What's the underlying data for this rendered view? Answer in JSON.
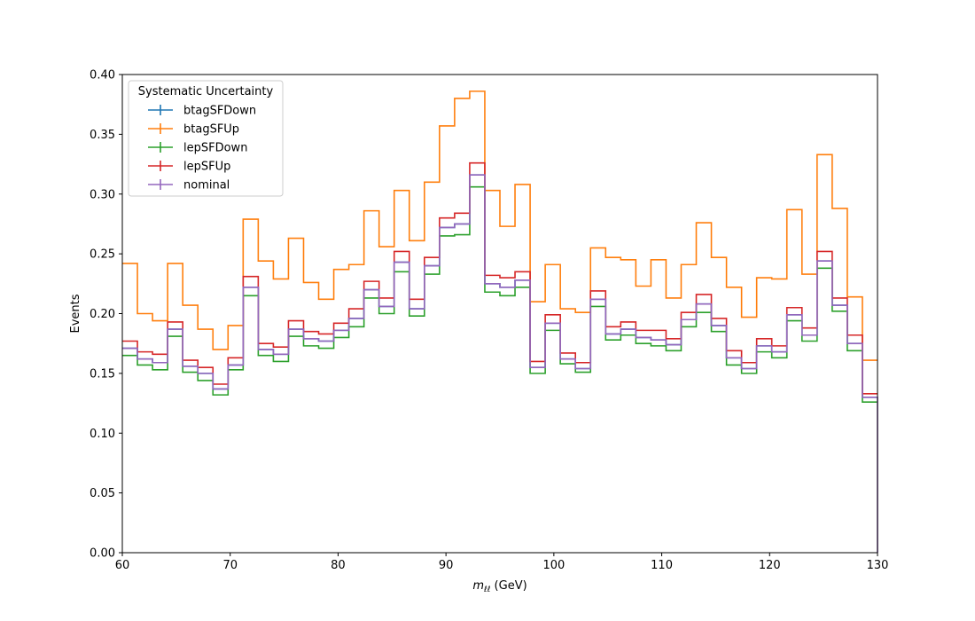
{
  "chart_data": {
    "type": "line",
    "drawstyle": "steps-post",
    "title": "",
    "xlabel_main": "m",
    "xlabel_sub": "ℓℓ",
    "xlabel_unit": " (GeV)",
    "ylabel": "Events",
    "xlim": [
      60,
      130
    ],
    "ylim": [
      0,
      0.4
    ],
    "xticks": [
      60,
      70,
      80,
      90,
      100,
      110,
      120,
      130
    ],
    "yticks": [
      "0.00",
      "0.05",
      "0.10",
      "0.15",
      "0.20",
      "0.25",
      "0.30",
      "0.35",
      "0.40"
    ],
    "grid": false,
    "legend": {
      "title": "Systematic Uncertainty",
      "position": "upper-left"
    },
    "bin_edges": [
      60,
      61.4,
      62.8,
      64.2,
      65.6,
      67,
      68.4,
      69.8,
      71.2,
      72.6,
      74,
      75.4,
      76.8,
      78.2,
      79.6,
      81,
      82.4,
      83.8,
      85.2,
      86.6,
      88,
      89.4,
      90.8,
      92.2,
      93.6,
      95,
      96.4,
      97.8,
      99.2,
      100.6,
      102,
      103.4,
      104.8,
      106.2,
      107.6,
      109,
      110.4,
      111.8,
      113.2,
      114.6,
      116,
      117.4,
      118.8,
      120.2,
      121.6,
      123,
      124.4,
      125.8,
      127.2,
      128.6,
      130
    ],
    "series": [
      {
        "name": "btagSFDown",
        "color": "#1f77b4",
        "values": [
          0.171,
          0.162,
          0.159,
          0.187,
          0.156,
          0.15,
          0.137,
          0.157,
          0.222,
          0.17,
          0.166,
          0.187,
          0.179,
          0.177,
          0.186,
          0.196,
          0.22,
          0.206,
          0.243,
          0.204,
          0.24,
          0.272,
          0.275,
          0.316,
          0.225,
          0.222,
          0.228,
          0.155,
          0.192,
          0.162,
          0.154,
          0.212,
          0.183,
          0.187,
          0.18,
          0.178,
          0.174,
          0.195,
          0.208,
          0.19,
          0.163,
          0.154,
          0.173,
          0.168,
          0.199,
          0.182,
          0.244,
          0.207,
          0.175,
          0.13
        ]
      },
      {
        "name": "btagSFUp",
        "color": "#ff7f0e",
        "values": [
          0.242,
          0.2,
          0.194,
          0.242,
          0.207,
          0.187,
          0.17,
          0.19,
          0.279,
          0.244,
          0.229,
          0.263,
          0.226,
          0.212,
          0.237,
          0.241,
          0.286,
          0.256,
          0.303,
          0.261,
          0.31,
          0.357,
          0.38,
          0.386,
          0.303,
          0.273,
          0.308,
          0.21,
          0.241,
          0.204,
          0.201,
          0.255,
          0.247,
          0.245,
          0.223,
          0.245,
          0.213,
          0.241,
          0.276,
          0.247,
          0.222,
          0.197,
          0.23,
          0.229,
          0.287,
          0.233,
          0.333,
          0.288,
          0.214,
          0.161
        ]
      },
      {
        "name": "lepSFDown",
        "color": "#2ca02c",
        "values": [
          0.165,
          0.157,
          0.153,
          0.181,
          0.151,
          0.144,
          0.132,
          0.153,
          0.215,
          0.165,
          0.16,
          0.181,
          0.173,
          0.171,
          0.18,
          0.189,
          0.213,
          0.2,
          0.235,
          0.198,
          0.233,
          0.265,
          0.266,
          0.306,
          0.218,
          0.215,
          0.222,
          0.15,
          0.186,
          0.158,
          0.151,
          0.206,
          0.178,
          0.182,
          0.175,
          0.173,
          0.169,
          0.189,
          0.201,
          0.185,
          0.157,
          0.15,
          0.168,
          0.163,
          0.194,
          0.177,
          0.238,
          0.202,
          0.169,
          0.126
        ]
      },
      {
        "name": "lepSFUp",
        "color": "#d62728",
        "values": [
          0.177,
          0.168,
          0.166,
          0.193,
          0.161,
          0.155,
          0.141,
          0.163,
          0.231,
          0.175,
          0.172,
          0.194,
          0.185,
          0.183,
          0.192,
          0.204,
          0.227,
          0.213,
          0.252,
          0.212,
          0.247,
          0.28,
          0.284,
          0.326,
          0.232,
          0.23,
          0.235,
          0.16,
          0.199,
          0.167,
          0.159,
          0.219,
          0.189,
          0.193,
          0.186,
          0.186,
          0.179,
          0.201,
          0.216,
          0.196,
          0.169,
          0.159,
          0.179,
          0.173,
          0.205,
          0.188,
          0.252,
          0.213,
          0.182,
          0.133
        ]
      },
      {
        "name": "nominal",
        "color": "#9467bd",
        "values": [
          0.171,
          0.162,
          0.159,
          0.187,
          0.156,
          0.15,
          0.137,
          0.157,
          0.222,
          0.17,
          0.166,
          0.187,
          0.179,
          0.177,
          0.186,
          0.196,
          0.22,
          0.206,
          0.243,
          0.204,
          0.24,
          0.272,
          0.275,
          0.316,
          0.225,
          0.222,
          0.228,
          0.155,
          0.192,
          0.162,
          0.154,
          0.212,
          0.183,
          0.187,
          0.18,
          0.178,
          0.174,
          0.195,
          0.208,
          0.19,
          0.163,
          0.154,
          0.173,
          0.168,
          0.199,
          0.182,
          0.244,
          0.207,
          0.175,
          0.13
        ]
      }
    ]
  }
}
